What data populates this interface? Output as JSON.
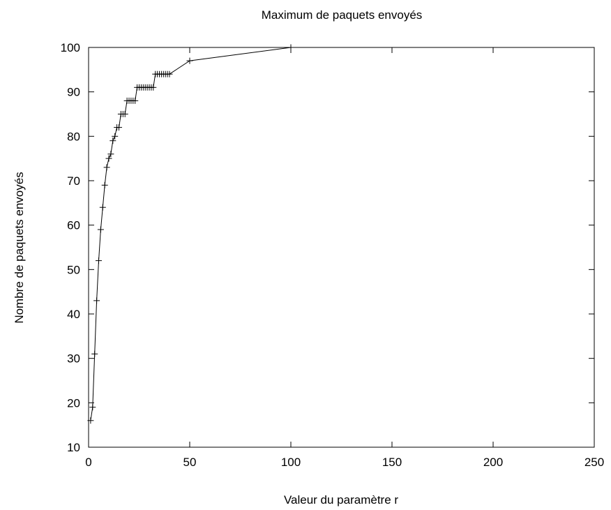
{
  "chart_data": {
    "type": "line",
    "title": "Maximum de paquets envoyés",
    "xlabel": "Valeur du paramètre r",
    "ylabel": "Nombre de paquets envoyés",
    "xlim": [
      0,
      250
    ],
    "ylim": [
      10,
      100
    ],
    "xticks": [
      0,
      50,
      100,
      150,
      200,
      250
    ],
    "yticks": [
      10,
      20,
      30,
      40,
      50,
      60,
      70,
      80,
      90,
      100
    ],
    "grid": false,
    "marker": "plus",
    "line_color": "#000000",
    "series": [
      {
        "x": [
          1,
          2,
          3,
          4,
          5,
          6,
          7,
          8,
          9,
          10,
          11,
          12,
          13,
          14,
          15,
          16,
          17,
          18,
          19,
          20,
          21,
          22,
          23,
          24,
          25,
          26,
          27,
          28,
          29,
          30,
          31,
          32,
          33,
          34,
          35,
          36,
          37,
          38,
          39,
          40,
          50,
          100
        ],
        "y": [
          16,
          19,
          31,
          43,
          52,
          59,
          64,
          69,
          73,
          75,
          76,
          79,
          80,
          82,
          82,
          85,
          85,
          85,
          88,
          88,
          88,
          88,
          88,
          91,
          91,
          91,
          91,
          91,
          91,
          91,
          91,
          91,
          94,
          94,
          94,
          94,
          94,
          94,
          94,
          94,
          97,
          100
        ]
      }
    ]
  }
}
